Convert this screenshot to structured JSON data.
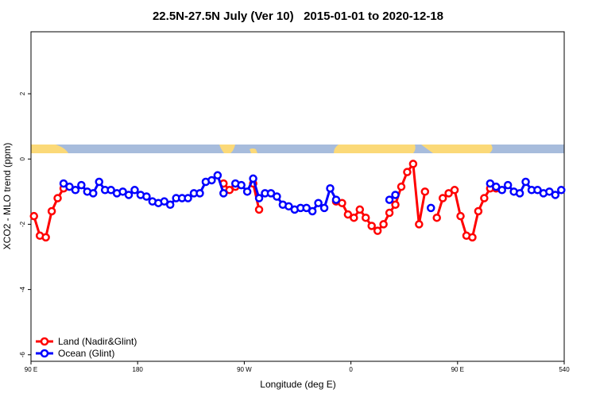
{
  "chart_data": {
    "type": "line",
    "title": "22.5N-27.5N July (Ver 10)   2015-01-01 to 2020-12-18",
    "x_label": "Longitude (deg E)",
    "y_label": "XCO2 - MLO trend (ppm)",
    "x": [
      92.5,
      97.5,
      102.5,
      107.5,
      112.5,
      117.5,
      122.5,
      127.5,
      132.5,
      137.5,
      142.5,
      147.5,
      152.5,
      157.5,
      162.5,
      167.5,
      172.5,
      177.5,
      182.5,
      187.5,
      192.5,
      197.5,
      202.5,
      207.5,
      212.5,
      217.5,
      222.5,
      227.5,
      232.5,
      237.5,
      242.5,
      247.5,
      252.5,
      257.5,
      262.5,
      267.5,
      272.5,
      277.5,
      282.5,
      287.5,
      292.5,
      297.5,
      302.5,
      307.5,
      312.5,
      317.5,
      322.5,
      327.5,
      332.5,
      337.5,
      342.5,
      347.5,
      352.5,
      357.5,
      362.5,
      367.5,
      372.5,
      377.5,
      382.5,
      387.5,
      392.5,
      397.5,
      402.5,
      407.5,
      412.5,
      417.5,
      422.5,
      427.5,
      432.5,
      437.5,
      442.5,
      447.5,
      452.5,
      457.5,
      462.5,
      467.5,
      472.5,
      477.5,
      482.5,
      487.5,
      492.5,
      497.5,
      502.5,
      507.5,
      512.5,
      517.5,
      522.5,
      527.5,
      532.5,
      537.5
    ],
    "series": [
      {
        "name": "Land (Nadir&Glint)",
        "color": "#ff0000",
        "values": [
          -1.75,
          -2.35,
          -2.4,
          -1.6,
          -1.2,
          -0.9,
          null,
          null,
          null,
          null,
          null,
          null,
          null,
          null,
          null,
          null,
          null,
          null,
          null,
          null,
          null,
          null,
          null,
          null,
          null,
          null,
          null,
          null,
          null,
          null,
          null,
          null,
          -0.75,
          -0.95,
          -0.85,
          null,
          null,
          -0.75,
          -1.55,
          null,
          null,
          null,
          null,
          null,
          null,
          null,
          null,
          null,
          null,
          null,
          null,
          -1.3,
          -1.35,
          -1.7,
          -1.8,
          -1.55,
          -1.8,
          -2.05,
          -2.2,
          -2.0,
          -1.65,
          -1.4,
          -0.85,
          -0.4,
          -0.15,
          -2.0,
          -1.0,
          null,
          -1.8,
          -1.2,
          -1.05,
          -0.95,
          -1.75,
          -2.35,
          -2.4,
          -1.6,
          -1.2,
          -0.9,
          -0.9,
          null,
          null,
          null,
          null,
          null,
          null,
          null,
          null,
          null,
          null,
          null
        ]
      },
      {
        "name": "Ocean (Glint)",
        "color": "#0000ff",
        "values": [
          null,
          null,
          null,
          null,
          null,
          -0.75,
          -0.85,
          -0.95,
          -0.8,
          -1.0,
          -1.05,
          -0.7,
          -0.95,
          -0.95,
          -1.05,
          -1.0,
          -1.1,
          -0.95,
          -1.1,
          -1.15,
          -1.3,
          -1.35,
          -1.3,
          -1.4,
          -1.2,
          -1.2,
          -1.2,
          -1.05,
          -1.05,
          -0.7,
          -0.65,
          -0.5,
          -1.05,
          null,
          -0.75,
          -0.8,
          -1.0,
          -0.6,
          -1.2,
          -1.05,
          -1.05,
          -1.15,
          -1.4,
          -1.45,
          -1.55,
          -1.5,
          -1.5,
          -1.6,
          -1.35,
          -1.5,
          -0.9,
          -1.25,
          null,
          null,
          null,
          null,
          null,
          null,
          null,
          null,
          -1.25,
          -1.1,
          null,
          null,
          null,
          null,
          null,
          -1.5,
          null,
          null,
          null,
          null,
          null,
          null,
          null,
          null,
          null,
          -0.75,
          -0.85,
          -0.95,
          -0.8,
          -1.0,
          -1.05,
          -0.7,
          -0.95,
          -0.95,
          -1.05,
          -1.0,
          -1.1,
          -0.95
        ]
      }
    ],
    "xlim": [
      90,
      540
    ],
    "xticks": [
      {
        "value": 90,
        "label": "90 E"
      },
      180,
      {
        "value": 270,
        "label": "90 W"
      },
      {
        "value": 360,
        "label": "0"
      },
      {
        "value": 450,
        "label": "90 E"
      },
      540
    ],
    "ylim": [
      -6.2,
      3.9
    ],
    "yticks": [
      -6,
      -4,
      -2,
      0,
      2
    ],
    "legend": "bottomleft"
  }
}
